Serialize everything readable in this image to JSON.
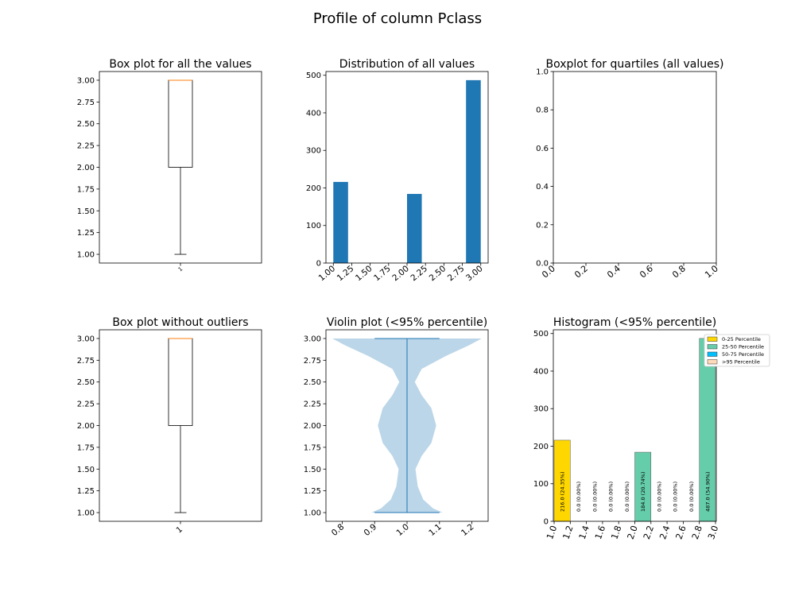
{
  "figure_title": "Profile of column  Pclass",
  "chart_data": [
    {
      "id": "boxplot_all",
      "type": "box",
      "title": "Box plot for all the values",
      "xtick_labels": [
        "1"
      ],
      "ylim": [
        0.9,
        3.1
      ],
      "yticks": [
        "1.00",
        "1.25",
        "1.50",
        "1.75",
        "2.00",
        "2.25",
        "2.50",
        "2.75",
        "3.00"
      ],
      "box": {
        "min": 1.0,
        "q1": 2.0,
        "median": 3.0,
        "q3": 3.0,
        "max": 3.0
      },
      "colors": {
        "box": "#000000",
        "median": "#ff7f0e"
      }
    },
    {
      "id": "distribution",
      "type": "bar",
      "title": "Distribution of all values",
      "xlim": [
        0.9,
        3.1
      ],
      "xticks": [
        "1.00",
        "1.25",
        "1.50",
        "1.75",
        "2.00",
        "2.25",
        "2.50",
        "2.75",
        "3.00"
      ],
      "ylim": [
        0,
        510
      ],
      "yticks": [
        "0",
        "100",
        "200",
        "300",
        "400",
        "500"
      ],
      "bins": [
        {
          "x0": 1.0,
          "x1": 1.2,
          "value": 216
        },
        {
          "x0": 1.2,
          "x1": 1.4,
          "value": 0
        },
        {
          "x0": 1.4,
          "x1": 1.6,
          "value": 0
        },
        {
          "x0": 1.6,
          "x1": 1.8,
          "value": 0
        },
        {
          "x0": 1.8,
          "x1": 2.0,
          "value": 0
        },
        {
          "x0": 2.0,
          "x1": 2.2,
          "value": 184
        },
        {
          "x0": 2.2,
          "x1": 2.4,
          "value": 0
        },
        {
          "x0": 2.4,
          "x1": 2.6,
          "value": 0
        },
        {
          "x0": 2.6,
          "x1": 2.8,
          "value": 0
        },
        {
          "x0": 2.8,
          "x1": 3.0,
          "value": 487
        }
      ],
      "color": "#1f77b4"
    },
    {
      "id": "quartile_boxplot",
      "type": "box",
      "title": "Boxplot for quartiles (all values)",
      "xlim": [
        0,
        1
      ],
      "xticks": [
        "0.0",
        "0.2",
        "0.4",
        "0.6",
        "0.8",
        "1.0"
      ],
      "ylim": [
        0,
        1
      ],
      "yticks": [
        "0.0",
        "0.2",
        "0.4",
        "0.6",
        "0.8",
        "1.0"
      ],
      "empty": true
    },
    {
      "id": "boxplot_no_outliers",
      "type": "box",
      "title": "Box plot without outliers",
      "xtick_labels": [
        "1"
      ],
      "ylim": [
        0.9,
        3.1
      ],
      "yticks": [
        "1.00",
        "1.25",
        "1.50",
        "1.75",
        "2.00",
        "2.25",
        "2.50",
        "2.75",
        "3.00"
      ],
      "box": {
        "min": 1.0,
        "q1": 2.0,
        "median": 3.0,
        "q3": 3.0,
        "max": 3.0
      },
      "colors": {
        "box": "#000000",
        "median": "#ff7f0e"
      }
    },
    {
      "id": "violin",
      "type": "violin",
      "title": "Violin plot (<95% percentile)",
      "xlim": [
        0.75,
        1.25
      ],
      "xticks": [
        "0.8",
        "0.9",
        "1.0",
        "1.1",
        "1.2"
      ],
      "ylim": [
        0.9,
        3.1
      ],
      "yticks": [
        "1.00",
        "1.25",
        "1.50",
        "1.75",
        "2.00",
        "2.25",
        "2.50",
        "2.75",
        "3.00"
      ],
      "min": 1.0,
      "max": 3.0,
      "density": [
        [
          1.0,
          0.11
        ],
        [
          1.05,
          0.08
        ],
        [
          1.15,
          0.05
        ],
        [
          1.3,
          0.033
        ],
        [
          1.5,
          0.026
        ],
        [
          1.65,
          0.045
        ],
        [
          1.8,
          0.075
        ],
        [
          2.0,
          0.09
        ],
        [
          2.2,
          0.075
        ],
        [
          2.35,
          0.045
        ],
        [
          2.5,
          0.024
        ],
        [
          2.65,
          0.045
        ],
        [
          2.8,
          0.12
        ],
        [
          2.92,
          0.19
        ],
        [
          3.0,
          0.23
        ]
      ],
      "colors": {
        "body": "#1f77b4",
        "lines": "#1f77b4"
      }
    },
    {
      "id": "histogram_percentile",
      "type": "bar",
      "title": "Histogram (<95% percentile)",
      "xlim": [
        0.99,
        3.01
      ],
      "xticks": [
        "1.0",
        "1.2",
        "1.4",
        "1.6",
        "1.8",
        "2.0",
        "2.2",
        "2.4",
        "2.6",
        "2.8",
        "3.0"
      ],
      "ylim": [
        0,
        510
      ],
      "yticks": [
        "0",
        "100",
        "200",
        "300",
        "400",
        "500"
      ],
      "bars": [
        {
          "x0": 1.0,
          "x1": 1.2,
          "value": 216,
          "label": "216.0  (24.35%)",
          "group": 0
        },
        {
          "x0": 1.2,
          "x1": 1.4,
          "value": 0,
          "label": "0.0  (0.00%)",
          "group": 0
        },
        {
          "x0": 1.4,
          "x1": 1.6,
          "value": 0,
          "label": "0.0  (0.00%)",
          "group": 0
        },
        {
          "x0": 1.6,
          "x1": 1.8,
          "value": 0,
          "label": "0.0  (0.00%)",
          "group": 0
        },
        {
          "x0": 1.8,
          "x1": 2.0,
          "value": 0,
          "label": "0.0  (0.00%)",
          "group": 0
        },
        {
          "x0": 2.0,
          "x1": 2.2,
          "value": 184,
          "label": "184.0  (20.74%)",
          "group": 1
        },
        {
          "x0": 2.2,
          "x1": 2.4,
          "value": 0,
          "label": "0.0  (0.00%)",
          "group": 1
        },
        {
          "x0": 2.4,
          "x1": 2.6,
          "value": 0,
          "label": "0.0  (0.00%)",
          "group": 1
        },
        {
          "x0": 2.6,
          "x1": 2.8,
          "value": 0,
          "label": "0.0  (0.00%)",
          "group": 1
        },
        {
          "x0": 2.8,
          "x1": 3.0,
          "value": 487,
          "label": "487.0  (54.90%)",
          "group": 1
        }
      ],
      "legend": {
        "placement": "upper-right-outside",
        "entries": [
          {
            "label": "0-25 Percentile",
            "color": "#ffd700"
          },
          {
            "label": "25-50 Percentile",
            "color": "#66cdaa"
          },
          {
            "label": "50-75 Percentile",
            "color": "#00bfff"
          },
          {
            "label": ">95 Percentile",
            "color": "#ffdab9"
          }
        ]
      }
    }
  ]
}
